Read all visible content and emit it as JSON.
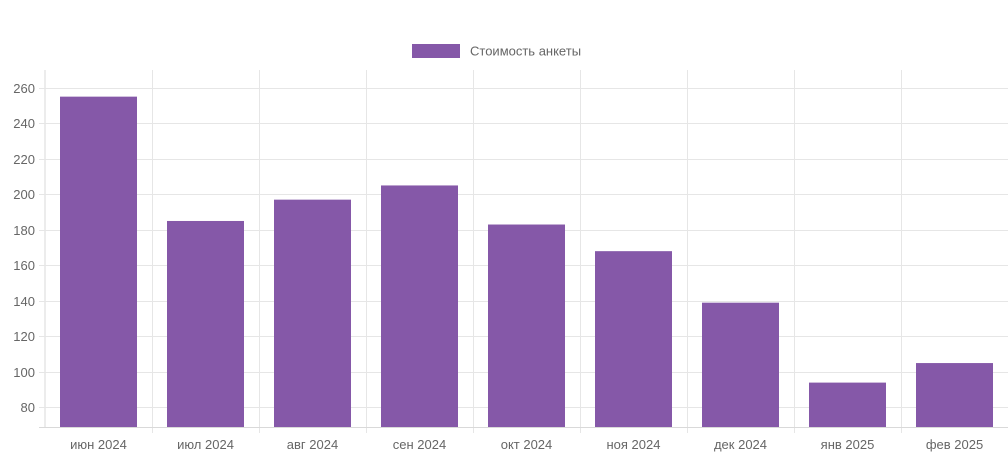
{
  "chart_data": {
    "type": "bar",
    "categories": [
      "июн 2024",
      "июл 2024",
      "авг 2024",
      "сен 2024",
      "окт 2024",
      "ноя 2024",
      "дек 2024",
      "янв 2025",
      "фев 2025"
    ],
    "series": [
      {
        "name": "Стоимость анкеты",
        "values": [
          255,
          185,
          197,
          205,
          183,
          168,
          139,
          94,
          105
        ],
        "color": "#8558a8"
      }
    ],
    "yticks": [
      80,
      100,
      120,
      140,
      160,
      180,
      200,
      220,
      240,
      260
    ],
    "ylim": [
      69,
      270
    ],
    "grid": true,
    "legend": "top-center",
    "title": "",
    "xlabel": "",
    "ylabel": ""
  }
}
